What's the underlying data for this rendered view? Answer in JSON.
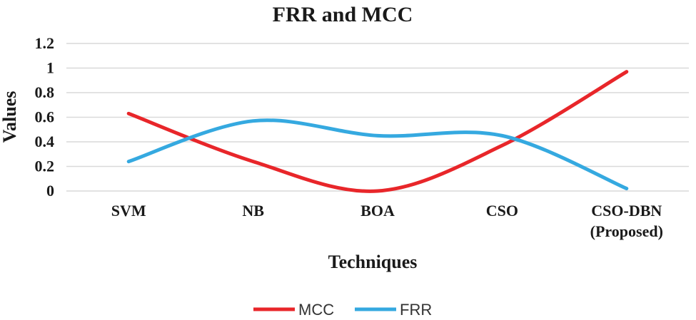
{
  "chart_data": {
    "type": "line",
    "title": "FRR and MCC",
    "xlabel": "Techniques",
    "ylabel": "Values",
    "categories": [
      [
        "SVM"
      ],
      [
        "NB"
      ],
      [
        "BOA"
      ],
      [
        "CSO"
      ],
      [
        "CSO-DBN",
        "(Proposed)"
      ]
    ],
    "yticks": [
      "0",
      "0.2",
      "0.4",
      "0.6",
      "0.8",
      "1",
      "1.2"
    ],
    "ylim": [
      0,
      1.2
    ],
    "grid": true,
    "smooth": true,
    "legend_position": "bottom",
    "series": [
      {
        "name": "MCC",
        "color": "#e8262a",
        "values": [
          0.63,
          0.24,
          0.0,
          0.37,
          0.97
        ]
      },
      {
        "name": "FRR",
        "color": "#35a9e0",
        "values": [
          0.24,
          0.57,
          0.45,
          0.45,
          0.02
        ]
      }
    ]
  }
}
